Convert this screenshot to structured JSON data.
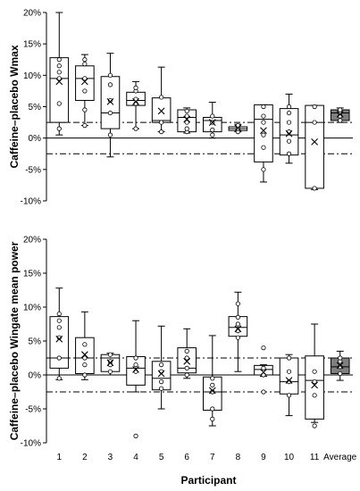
{
  "chart_data": [
    {
      "type": "box",
      "ylabel": "Caffeine–placebo Wmax",
      "ylim": [
        -10,
        20
      ],
      "yticks": [
        "-10%",
        "-5%",
        "0%",
        "5%",
        "10%",
        "15%",
        "20%"
      ],
      "categories": [
        "1",
        "2",
        "3",
        "4",
        "5",
        "6",
        "7",
        "8",
        "9",
        "10",
        "11",
        "Average"
      ],
      "reference_lines": [
        2.5,
        -2.5
      ],
      "boxes": [
        {
          "category": "1",
          "min": 0.5,
          "q1": 2.5,
          "median": 9.5,
          "q3": 12.8,
          "max": 20,
          "mean": 9.0,
          "points": [
            1.5,
            5.5,
            9.5,
            10.5,
            11.5,
            12.5
          ]
        },
        {
          "category": "2",
          "min": 2.0,
          "q1": 6.0,
          "median": 9.5,
          "q3": 11.5,
          "max": 13.3,
          "mean": 9.0,
          "points": [
            2.0,
            4.5,
            7.5,
            9.5,
            11.8,
            12.5
          ]
        },
        {
          "category": "3",
          "min": -3.0,
          "q1": 1.5,
          "median": 4.0,
          "q3": 9.8,
          "max": 13.5,
          "mean": 5.8,
          "points": [
            0.5,
            4.0,
            6.0,
            8.5,
            10.0
          ]
        },
        {
          "category": "4",
          "min": 1.5,
          "q1": 5.2,
          "median": 6.0,
          "q3": 7.3,
          "max": 9.0,
          "mean": 5.8,
          "points": [
            1.5,
            5.5,
            6.2,
            7.5,
            8.0
          ]
        },
        {
          "category": "5",
          "min": 1.0,
          "q1": 2.5,
          "median": 2.8,
          "q3": 6.4,
          "max": 11.3,
          "mean": 4.3,
          "points": [
            1.0,
            2.5,
            6.5
          ]
        },
        {
          "category": "6",
          "min": 0.8,
          "q1": 1.0,
          "median": 3.3,
          "q3": 4.5,
          "max": 4.8,
          "mean": 3.0,
          "points": [
            1.0,
            1.5,
            2.5,
            3.5,
            4.3
          ]
        },
        {
          "category": "7",
          "min": 0.0,
          "q1": 1.0,
          "median": 2.8,
          "q3": 3.3,
          "max": 5.7,
          "mean": 2.5,
          "points": [
            0.5,
            1.3,
            2.5,
            3.5
          ]
        },
        {
          "category": "8",
          "min": 1.0,
          "q1": 1.2,
          "median": 1.5,
          "q3": 1.8,
          "max": 2.2,
          "mean": 1.6,
          "points": [
            1.0,
            1.5,
            2.0
          ]
        },
        {
          "category": "9",
          "min": -7.0,
          "q1": -3.8,
          "median": 3.0,
          "q3": 5.3,
          "max": 5.3,
          "mean": 1.2,
          "points": [
            -5.0,
            -1.5,
            0.5,
            2.5,
            3.5,
            5.0
          ]
        },
        {
          "category": "10",
          "min": -4.0,
          "q1": -2.7,
          "median": 0.5,
          "q3": 4.7,
          "max": 7.0,
          "mean": 0.7,
          "points": [
            -2.5,
            -0.5,
            1.0,
            2.5,
            4.0,
            5.0
          ]
        },
        {
          "category": "11",
          "min": -8.2,
          "q1": -8.0,
          "median": 2.5,
          "q3": 5.2,
          "max": 5.2,
          "mean": -0.6,
          "points": [
            -8.0,
            2.5,
            5.0
          ]
        },
        {
          "category": "Average",
          "min": 2.5,
          "q1": 2.8,
          "median": 4.0,
          "q3": 4.5,
          "max": 4.8,
          "mean": 3.8,
          "points": [
            2.8,
            3.5,
            4.0,
            4.5
          ],
          "fill": "#7f7f7f"
        }
      ]
    },
    {
      "type": "box",
      "ylabel": "Caffeine–placebo Wingate mean power",
      "xlabel": "Participant",
      "ylim": [
        -10,
        20
      ],
      "yticks": [
        "-10%",
        "-5%",
        "0%",
        "5%",
        "10%",
        "15%",
        "20%"
      ],
      "categories": [
        "1",
        "2",
        "3",
        "4",
        "5",
        "6",
        "7",
        "8",
        "9",
        "10",
        "11",
        "Average"
      ],
      "reference_lines": [
        2.5,
        -2.5
      ],
      "boxes": [
        {
          "category": "1",
          "min": -0.7,
          "q1": 1.0,
          "median": 2.5,
          "q3": 8.6,
          "max": 12.8,
          "mean": 5.3,
          "points": [
            -0.5,
            2.5,
            5.5,
            7.0,
            8.0,
            9.0
          ]
        },
        {
          "category": "2",
          "min": -0.7,
          "q1": 0.2,
          "median": 2.5,
          "q3": 5.5,
          "max": 9.3,
          "mean": 3.0,
          "points": [
            0.0,
            1.5,
            2.5,
            4.5
          ]
        },
        {
          "category": "3",
          "min": 0.0,
          "q1": 0.5,
          "median": 2.5,
          "q3": 3.0,
          "max": 3.2,
          "mean": 1.8,
          "points": [
            0.5,
            1.5,
            2.0,
            3.0
          ]
        },
        {
          "category": "4",
          "min": -2.5,
          "q1": -1.5,
          "median": 1.0,
          "q3": 2.7,
          "max": 8.0,
          "mean": 0.8,
          "points": [
            -9.0,
            0.5,
            1.5,
            2.5
          ]
        },
        {
          "category": "5",
          "min": -5.0,
          "q1": -2.2,
          "median": -0.5,
          "q3": 2.0,
          "max": 7.2,
          "mean": 0.2,
          "points": [
            -2.0,
            -1.0,
            0.5,
            1.5
          ]
        },
        {
          "category": "6",
          "min": -0.5,
          "q1": 0.3,
          "median": 1.0,
          "q3": 4.0,
          "max": 6.8,
          "mean": 2.0,
          "points": [
            0.0,
            1.0,
            2.5,
            3.5
          ]
        },
        {
          "category": "7",
          "min": -7.5,
          "q1": -5.2,
          "median": -2.5,
          "q3": -0.3,
          "max": 5.8,
          "mean": -2.3,
          "points": [
            -6.5,
            -5.0,
            -2.5,
            -1.5,
            -0.5
          ]
        },
        {
          "category": "8",
          "min": 0.5,
          "q1": 5.7,
          "median": 7.0,
          "q3": 8.6,
          "max": 12.2,
          "mean": 6.8,
          "points": [
            5.5,
            6.5,
            7.5,
            8.5,
            10.5
          ]
        },
        {
          "category": "9",
          "min": -0.2,
          "q1": 0.0,
          "median": 0.8,
          "q3": 1.4,
          "max": 1.5,
          "mean": 0.4,
          "points": [
            -2.5,
            0.0,
            1.0,
            4.0
          ]
        },
        {
          "category": "10",
          "min": -6.0,
          "q1": -2.8,
          "median": -1.0,
          "q3": 2.5,
          "max": 3.0,
          "mean": -0.8,
          "points": [
            -3.0,
            -1.0,
            0.5,
            2.5
          ]
        },
        {
          "category": "11",
          "min": -7.0,
          "q1": -6.5,
          "median": -0.8,
          "q3": 2.8,
          "max": 7.5,
          "mean": -1.5,
          "points": [
            -7.5,
            -3.0,
            -1.0,
            0.5
          ]
        },
        {
          "category": "Average",
          "min": -0.8,
          "q1": 0.2,
          "median": 1.2,
          "q3": 2.5,
          "max": 3.5,
          "mean": 1.4,
          "points": [
            0.2,
            1.2,
            2.0,
            2.5
          ],
          "fill": "#7f7f7f"
        }
      ]
    }
  ]
}
